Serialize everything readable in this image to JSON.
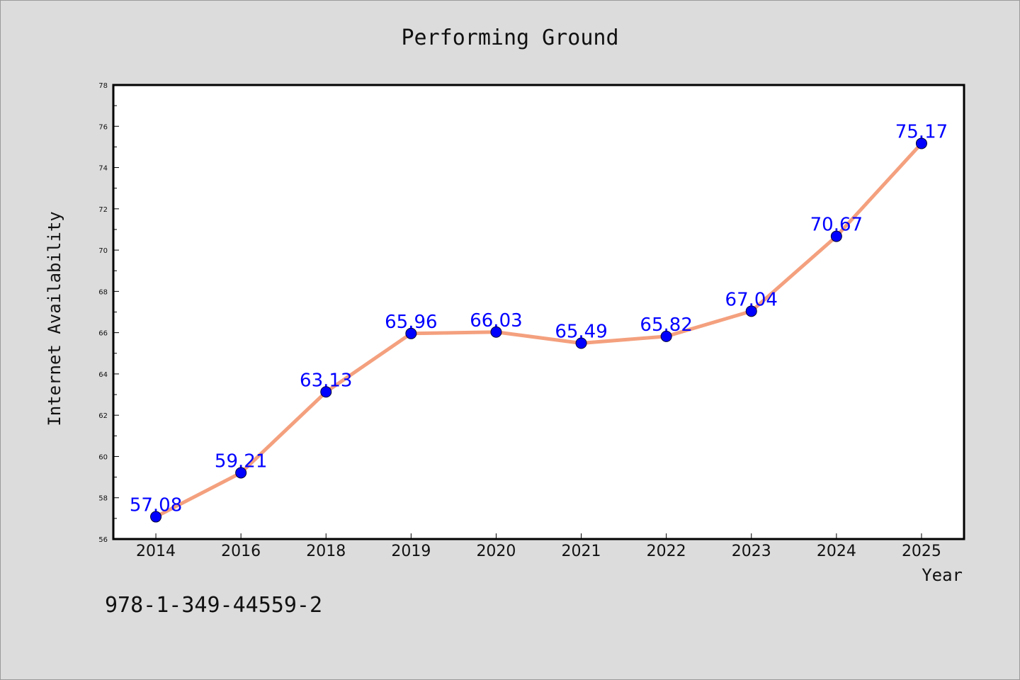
{
  "chart_data": {
    "type": "line",
    "title": "Performing Ground",
    "xlabel": "Year",
    "ylabel": "Internet Availability",
    "categories": [
      "2014",
      "2016",
      "2018",
      "2019",
      "2020",
      "2021",
      "2022",
      "2023",
      "2024",
      "2025"
    ],
    "series": [
      {
        "values": [
          57.08,
          59.21,
          63.13,
          65.96,
          66.03,
          65.49,
          65.82,
          67.04,
          70.67,
          75.17
        ],
        "labels": [
          "57.08",
          "59.21",
          "63.13",
          "65.96",
          "66.03",
          "65.49",
          "65.82",
          "67.04",
          "70.67",
          "75.17"
        ],
        "line_color": "#f4a07e",
        "marker_color": "#0000ff"
      }
    ],
    "ylim": [
      56,
      78
    ],
    "yticks": [
      "56",
      "58",
      "60",
      "62",
      "64",
      "66",
      "68",
      "70",
      "72",
      "74",
      "76",
      "78"
    ],
    "grid": false,
    "legend": "none"
  },
  "footer": {
    "text": "978-1-349-44559-2"
  }
}
